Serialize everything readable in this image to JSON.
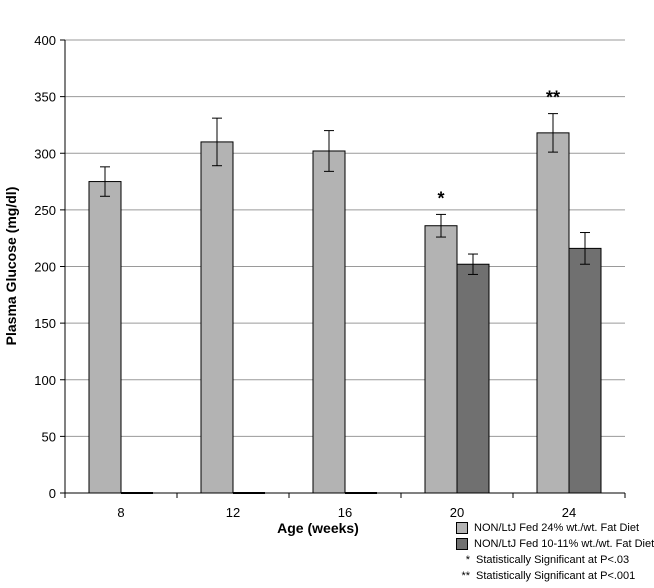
{
  "chart_data": {
    "type": "bar",
    "title": "",
    "xlabel": "Age (weeks)",
    "ylabel": "Plasma Glucose (mg/dl)",
    "categories": [
      "8",
      "12",
      "16",
      "20",
      "24"
    ],
    "ylim": [
      0,
      400
    ],
    "yticks": [
      "0",
      "50",
      "100",
      "150",
      "200",
      "250",
      "300",
      "350",
      "400"
    ],
    "grid": true,
    "series": [
      {
        "name": "NON/LtJ Fed 24% wt./wt. Fat Diet",
        "color": "#b3b3b3",
        "values": [
          275,
          310,
          302,
          236,
          318
        ],
        "errors": [
          13,
          21,
          18,
          10,
          17
        ]
      },
      {
        "name": "NON/LtJ Fed 10-11% wt./wt. Fat Diet",
        "color": "#707070",
        "values": [
          0,
          0,
          0,
          202,
          216
        ],
        "errors": [
          0,
          0,
          0,
          9,
          14
        ]
      }
    ],
    "annotations": [
      {
        "category": "20",
        "text": "*"
      },
      {
        "category": "24",
        "text": "**"
      }
    ],
    "legend": {
      "position": "bottom-right",
      "notes": [
        {
          "marker": "*",
          "text": "Statistically Significant at P<.03"
        },
        {
          "marker": "**",
          "text": "Statistically Significant at P<.001"
        }
      ]
    }
  }
}
